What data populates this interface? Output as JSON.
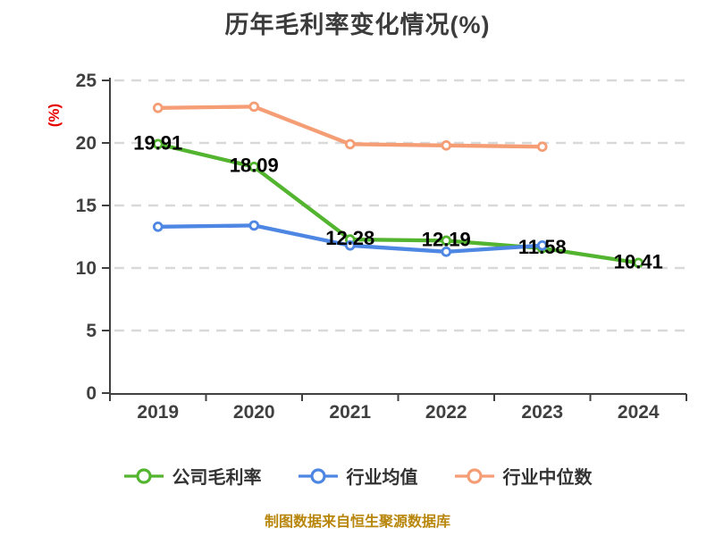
{
  "chart": {
    "title": "历年毛利率变化情况(%)",
    "y_axis_label": "(%)",
    "source_note": "制图数据来自恒生聚源数据库"
  },
  "chart_data": {
    "type": "line",
    "title": "历年毛利率变化情况(%)",
    "categories": [
      "2019",
      "2020",
      "2021",
      "2022",
      "2023",
      "2024"
    ],
    "series": [
      {
        "name": "公司毛利率",
        "color": "#53b42f",
        "values": [
          19.91,
          18.09,
          12.28,
          12.19,
          11.58,
          10.41
        ],
        "labels_shown": true
      },
      {
        "name": "行业均值",
        "color": "#4d86e3",
        "values": [
          13.3,
          13.4,
          11.8,
          11.3,
          11.8,
          null
        ],
        "labels_shown": false
      },
      {
        "name": "行业中位数",
        "color": "#f59d74",
        "values": [
          22.8,
          22.9,
          19.9,
          19.8,
          19.7,
          null
        ],
        "labels_shown": false
      }
    ],
    "xlabel": "",
    "ylabel": "(%)",
    "ylim": [
      0,
      25
    ],
    "y_ticks": [
      0,
      5,
      10,
      15,
      20,
      25
    ],
    "grid": "horizontal-dashed",
    "legend_position": "bottom"
  },
  "style": {
    "background": "#ffffff",
    "title_color": "#3c3c3c",
    "axis_color": "#404040",
    "tick_label_color": "#404040",
    "grid_color": "#d9d9d9",
    "data_label_color": "#000000",
    "y_axis_label_color": "#e60000",
    "legend_text_color": "#333333",
    "source_note_color": "#b8860b"
  }
}
